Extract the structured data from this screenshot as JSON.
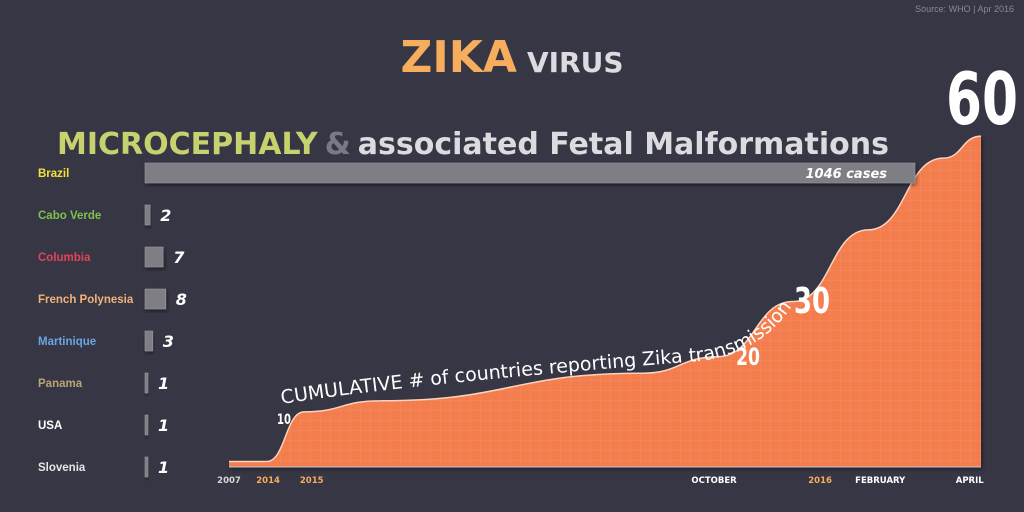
{
  "source": "Source: WHO  |  Apr 2016",
  "title": {
    "main": "ZIKA",
    "sub": "VIRUS",
    "main_color": "#f6ad5c",
    "sub_color": "#dcdce0"
  },
  "bar_chart": {
    "title_part1": "MICROCEPHALY",
    "title_amp": "&",
    "title_part2": "associated Fetal Malformations",
    "title_colors": {
      "part1": "#c7d26e",
      "amp": "#7a7a84",
      "part2": "#dcdce0"
    }
  },
  "colors": {
    "background": "#363644",
    "area": "#f47d4e",
    "bar": "#7e7e84",
    "text": "#ffffff"
  },
  "chart_data": [
    {
      "type": "bar",
      "orientation": "horizontal",
      "title": "MICROCEPHALY & associated Fetal Malformations",
      "categories": [
        "Brazil",
        "Cabo Verde",
        "Columbia",
        "French Polynesia",
        "Martinique",
        "Panama",
        "USA",
        "Slovenia"
      ],
      "values": [
        1046,
        2,
        7,
        8,
        3,
        1,
        1,
        1
      ],
      "value_labels": [
        "1046 cases",
        "2",
        "7",
        "8",
        "3",
        "1",
        "1",
        "1"
      ],
      "category_colors": [
        "#f3e33c",
        "#7ec24d",
        "#e2445a",
        "#f3b27a",
        "#6aa6e0",
        "#b9a575",
        "#ffffff",
        "#e6e6e6"
      ]
    },
    {
      "type": "area",
      "title": "CUMULATIVE # of countries reporting Zika transmission",
      "x_ticks": [
        "2007",
        "2014",
        "2015",
        "OCTOBER",
        "2016",
        "FEBRUARY",
        "APRIL"
      ],
      "x_tick_colors": [
        "#d8d8d8",
        "#f6ad5c",
        "#f6ad5c",
        "#ffffff",
        "#f6ad5c",
        "#ffffff",
        "#ffffff"
      ],
      "points": [
        {
          "t": 0,
          "y": 1
        },
        {
          "t": 0.05,
          "y": 1
        },
        {
          "t": 0.1,
          "y": 10
        },
        {
          "t": 0.2,
          "y": 12
        },
        {
          "t": 0.55,
          "y": 17
        },
        {
          "t": 0.65,
          "y": 20
        },
        {
          "t": 0.75,
          "y": 30
        },
        {
          "t": 0.85,
          "y": 43
        },
        {
          "t": 0.95,
          "y": 56
        },
        {
          "t": 1,
          "y": 60
        }
      ],
      "annotations": [
        "10",
        "20",
        "30",
        "60"
      ],
      "ylim": [
        0,
        64
      ]
    }
  ]
}
